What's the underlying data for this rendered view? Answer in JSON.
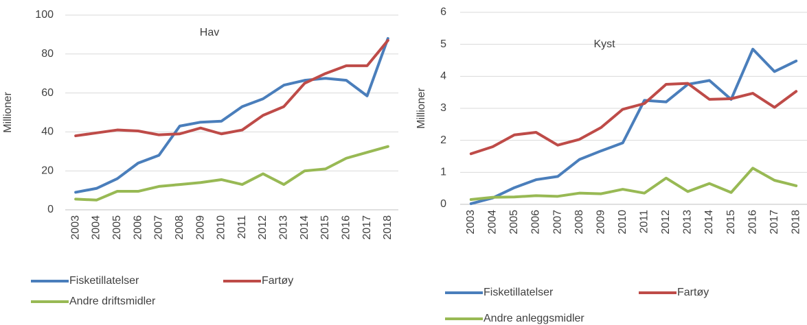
{
  "chart_data": [
    {
      "type": "line",
      "title": "Hav",
      "y_label": "Millioner",
      "categories": [
        "2003",
        "2004",
        "2005",
        "2006",
        "2007",
        "2008",
        "2009",
        "2010",
        "2011",
        "2012",
        "2013",
        "2014",
        "2015",
        "2016",
        "2017",
        "2018"
      ],
      "series": [
        {
          "name": "Fisketillatelser",
          "color": "#4a7ebb",
          "values": [
            9,
            11,
            16,
            24,
            28,
            43,
            45,
            45.5,
            53,
            57,
            64,
            66.5,
            67.5,
            66.5,
            58.5,
            88
          ]
        },
        {
          "name": "Fartøy",
          "color": "#be4b48",
          "values": [
            38,
            39.5,
            41,
            40.5,
            38.5,
            39,
            42,
            39,
            41,
            48.5,
            53,
            65,
            70,
            74,
            74,
            87
          ]
        },
        {
          "name": "Andre driftsmidler",
          "color": "#98b954",
          "values": [
            5.5,
            5,
            9.5,
            9.5,
            12,
            13,
            14,
            15.5,
            13,
            18.5,
            13,
            20,
            21,
            26.5,
            29.5,
            32.5
          ]
        }
      ],
      "ylim": [
        0,
        100
      ],
      "yticks": [
        0,
        20,
        40,
        60,
        80,
        100
      ],
      "grid": true
    },
    {
      "type": "line",
      "title": "Kyst",
      "y_label": "Millioner",
      "categories": [
        "2003",
        "2004",
        "2005",
        "2006",
        "2007",
        "2008",
        "2009",
        "2010",
        "2011",
        "2012",
        "2013",
        "2014",
        "2015",
        "2016",
        "2017",
        "2018"
      ],
      "series": [
        {
          "name": "Fisketillatelser",
          "color": "#4a7ebb",
          "values": [
            0.02,
            0.2,
            0.52,
            0.77,
            0.87,
            1.4,
            1.67,
            1.92,
            3.25,
            3.2,
            3.75,
            3.87,
            3.28,
            4.85,
            4.15,
            4.48
          ]
        },
        {
          "name": "Fartøy",
          "color": "#be4b48",
          "values": [
            1.58,
            1.8,
            2.17,
            2.25,
            1.85,
            2.03,
            2.4,
            2.97,
            3.15,
            3.75,
            3.78,
            3.28,
            3.3,
            3.47,
            3.03,
            3.53
          ]
        },
        {
          "name": "Andre anleggsmidler",
          "color": "#98b954",
          "values": [
            0.15,
            0.22,
            0.23,
            0.27,
            0.25,
            0.35,
            0.33,
            0.47,
            0.35,
            0.82,
            0.4,
            0.65,
            0.37,
            1.13,
            0.75,
            0.58
          ]
        }
      ],
      "ylim": [
        0,
        6
      ],
      "yticks": [
        0,
        1,
        2,
        3,
        4,
        5,
        6
      ],
      "grid": true
    }
  ]
}
